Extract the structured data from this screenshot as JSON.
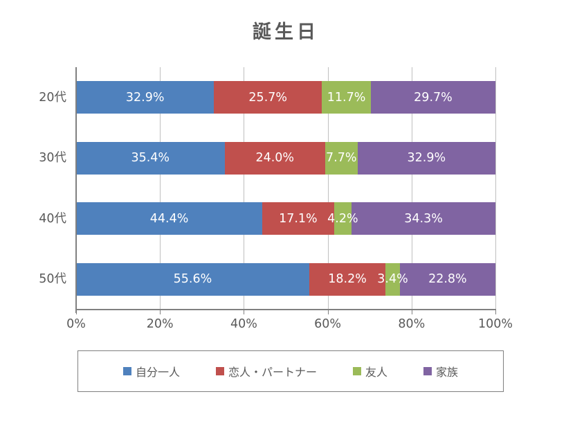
{
  "title": "誕生日",
  "chart_data": {
    "type": "bar",
    "stacked": true,
    "orientation": "horizontal",
    "title": "誕生日",
    "categories": [
      "20代",
      "30代",
      "40代",
      "50代"
    ],
    "series": [
      {
        "name": "自分一人",
        "color": "#4F81BD",
        "values": [
          32.9,
          35.4,
          44.4,
          55.6
        ],
        "labels": [
          "32.9%",
          "35.4%",
          "44.4%",
          "55.6%"
        ]
      },
      {
        "name": "恋人・パートナー",
        "color": "#C0504D",
        "values": [
          25.7,
          24.0,
          17.1,
          18.2
        ],
        "labels": [
          "25.7%",
          "24.0%",
          "17.1%",
          "18.2%"
        ]
      },
      {
        "name": "友人",
        "color": "#9BBB59",
        "values": [
          11.7,
          7.7,
          4.2,
          3.4
        ],
        "labels": [
          "11.7%",
          "7.7%",
          "4.2%",
          "3.4%"
        ]
      },
      {
        "name": "家族",
        "color": "#8064A2",
        "values": [
          29.7,
          32.9,
          34.3,
          22.8
        ],
        "labels": [
          "29.7%",
          "32.9%",
          "34.3%",
          "22.8%"
        ]
      }
    ],
    "x_ticks": [
      "0%",
      "20%",
      "40%",
      "60%",
      "80%",
      "100%"
    ],
    "xlim": [
      0,
      100
    ],
    "grid": true,
    "legend_position": "bottom"
  },
  "colors": {
    "gridline": "#BFBFBF",
    "axis": "#808080",
    "text": "#595959",
    "bar_label": "#FFFFFF",
    "legend_border": "#7F7F7F",
    "background": "#FFFFFF"
  }
}
